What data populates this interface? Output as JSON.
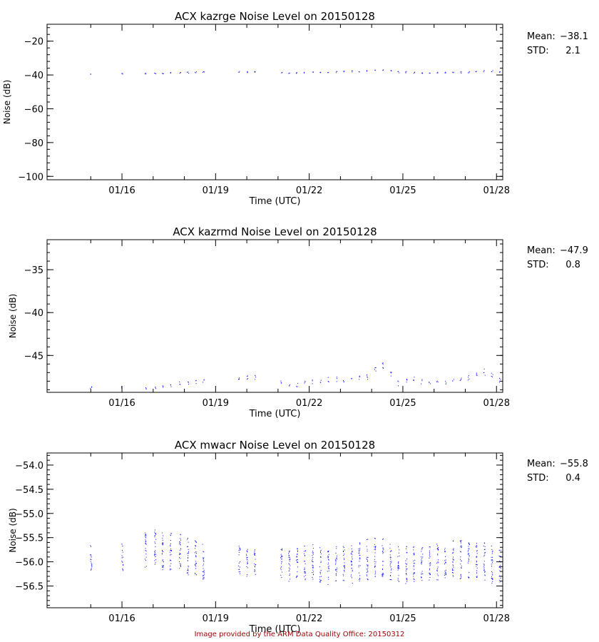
{
  "chart_data": [
    {
      "type": "scatter",
      "title": "ACX kazrge Noise Level on 20150128",
      "xlabel": "Time (UTC)",
      "ylabel": "Noise (dB)",
      "xlim": [
        -1.4,
        13.2
      ],
      "ylim": [
        -102,
        -10
      ],
      "x_ticks": [
        {
          "x": 1,
          "label": "01/16"
        },
        {
          "x": 4,
          "label": "01/19"
        },
        {
          "x": 7,
          "label": "01/22"
        },
        {
          "x": 10,
          "label": "01/25"
        },
        {
          "x": 13,
          "label": "01/28"
        }
      ],
      "y_ticks": [
        {
          "y": -20,
          "label": "−20"
        },
        {
          "y": -40,
          "label": "−40"
        },
        {
          "y": -60,
          "label": "−60"
        },
        {
          "y": -80,
          "label": "−80"
        },
        {
          "y": -100,
          "label": "−100"
        }
      ],
      "series": [
        {
          "color": "#0000ff",
          "points": [
            {
              "x": 0.0,
              "y": -38.8,
              "spread": 0.2
            },
            {
              "x": 1.0,
              "y": -38.8,
              "spread": 0.2
            },
            {
              "x": 1.75,
              "y": -38.7,
              "spread": 0.3
            },
            {
              "x": 2.05,
              "y": -38.6,
              "spread": 0.3
            },
            {
              "x": 2.3,
              "y": -38.5,
              "spread": 0.3
            },
            {
              "x": 2.55,
              "y": -38.4,
              "spread": 0.3
            },
            {
              "x": 2.85,
              "y": -38.3,
              "spread": 0.3
            },
            {
              "x": 3.1,
              "y": -38.1,
              "spread": 0.4
            },
            {
              "x": 3.35,
              "y": -38.0,
              "spread": 0.4
            },
            {
              "x": 3.6,
              "y": -38.0,
              "spread": 0.4
            },
            {
              "x": 4.75,
              "y": -37.9,
              "spread": 0.4
            },
            {
              "x": 5.0,
              "y": -38.0,
              "spread": 0.4
            },
            {
              "x": 5.25,
              "y": -37.9,
              "spread": 0.4
            },
            {
              "x": 6.1,
              "y": -38.2,
              "spread": 0.4
            },
            {
              "x": 6.35,
              "y": -38.3,
              "spread": 0.4
            },
            {
              "x": 6.6,
              "y": -38.4,
              "spread": 0.4
            },
            {
              "x": 6.85,
              "y": -38.2,
              "spread": 0.4
            },
            {
              "x": 7.1,
              "y": -38.0,
              "spread": 0.4
            },
            {
              "x": 7.35,
              "y": -38.0,
              "spread": 0.4
            },
            {
              "x": 7.6,
              "y": -37.9,
              "spread": 0.4
            },
            {
              "x": 7.85,
              "y": -37.8,
              "spread": 0.4
            },
            {
              "x": 8.1,
              "y": -37.7,
              "spread": 0.4
            },
            {
              "x": 8.35,
              "y": -37.5,
              "spread": 0.5
            },
            {
              "x": 8.6,
              "y": -37.5,
              "spread": 0.5
            },
            {
              "x": 8.85,
              "y": -37.2,
              "spread": 0.6
            },
            {
              "x": 9.1,
              "y": -36.8,
              "spread": 0.8
            },
            {
              "x": 9.35,
              "y": -36.8,
              "spread": 0.8
            },
            {
              "x": 9.6,
              "y": -37.0,
              "spread": 0.8
            },
            {
              "x": 9.85,
              "y": -38.0,
              "spread": 0.6
            },
            {
              "x": 10.1,
              "y": -38.0,
              "spread": 0.5
            },
            {
              "x": 10.35,
              "y": -38.2,
              "spread": 0.5
            },
            {
              "x": 10.6,
              "y": -38.3,
              "spread": 0.5
            },
            {
              "x": 10.85,
              "y": -38.3,
              "spread": 0.4
            },
            {
              "x": 11.1,
              "y": -38.2,
              "spread": 0.4
            },
            {
              "x": 11.35,
              "y": -38.2,
              "spread": 0.4
            },
            {
              "x": 11.6,
              "y": -38.1,
              "spread": 0.4
            },
            {
              "x": 11.85,
              "y": -38.1,
              "spread": 0.4
            },
            {
              "x": 12.1,
              "y": -37.9,
              "spread": 0.4
            },
            {
              "x": 12.35,
              "y": -37.7,
              "spread": 0.4
            },
            {
              "x": 12.6,
              "y": -37.4,
              "spread": 0.5
            },
            {
              "x": 12.85,
              "y": -37.3,
              "spread": 0.5
            },
            {
              "x": 13.1,
              "y": -37.8,
              "spread": 0.8
            }
          ]
        }
      ],
      "stats": {
        "mean_label": "Mean:",
        "mean": "−38.1",
        "std_label": "STD:",
        "std": "2.1"
      }
    },
    {
      "type": "scatter",
      "title": "ACX kazrmd Noise Level on 20150128",
      "xlabel": "Time (UTC)",
      "ylabel": "Noise (dB)",
      "xlim": [
        -1.4,
        13.2
      ],
      "ylim": [
        -49.3,
        -31.5
      ],
      "x_ticks": [
        {
          "x": 1,
          "label": "01/16"
        },
        {
          "x": 4,
          "label": "01/19"
        },
        {
          "x": 7,
          "label": "01/22"
        },
        {
          "x": 10,
          "label": "01/25"
        },
        {
          "x": 13,
          "label": "01/28"
        }
      ],
      "y_ticks": [
        {
          "y": -35,
          "label": "−35"
        },
        {
          "y": -40,
          "label": "−40"
        },
        {
          "y": -45,
          "label": "−45"
        }
      ],
      "series": [
        {
          "color": "#0000ff",
          "points": [
            {
              "x": 0.0,
              "y": -48.7,
              "spread": 0.3
            },
            {
              "x": 1.0,
              "y": -48.7,
              "spread": 0.3
            },
            {
              "x": 1.75,
              "y": -48.7,
              "spread": 0.4
            },
            {
              "x": 2.05,
              "y": -48.7,
              "spread": 0.4
            },
            {
              "x": 2.3,
              "y": -48.6,
              "spread": 0.4
            },
            {
              "x": 2.55,
              "y": -48.4,
              "spread": 0.5
            },
            {
              "x": 2.85,
              "y": -48.2,
              "spread": 0.5
            },
            {
              "x": 3.1,
              "y": -48.1,
              "spread": 0.5
            },
            {
              "x": 3.35,
              "y": -48.1,
              "spread": 0.5
            },
            {
              "x": 3.6,
              "y": -48.0,
              "spread": 0.5
            },
            {
              "x": 4.75,
              "y": -47.7,
              "spread": 0.7
            },
            {
              "x": 5.0,
              "y": -47.5,
              "spread": 0.7
            },
            {
              "x": 5.25,
              "y": -47.5,
              "spread": 0.7
            },
            {
              "x": 6.1,
              "y": -48.0,
              "spread": 0.6
            },
            {
              "x": 6.35,
              "y": -48.4,
              "spread": 0.5
            },
            {
              "x": 6.6,
              "y": -48.4,
              "spread": 0.5
            },
            {
              "x": 6.85,
              "y": -48.1,
              "spread": 0.6
            },
            {
              "x": 7.1,
              "y": -48.0,
              "spread": 0.6
            },
            {
              "x": 7.35,
              "y": -47.9,
              "spread": 0.6
            },
            {
              "x": 7.6,
              "y": -47.8,
              "spread": 0.6
            },
            {
              "x": 7.85,
              "y": -47.7,
              "spread": 0.6
            },
            {
              "x": 8.1,
              "y": -47.8,
              "spread": 0.6
            },
            {
              "x": 8.35,
              "y": -47.9,
              "spread": 0.6
            },
            {
              "x": 8.6,
              "y": -47.6,
              "spread": 0.7
            },
            {
              "x": 8.85,
              "y": -47.3,
              "spread": 0.9
            },
            {
              "x": 9.1,
              "y": -46.4,
              "spread": 1.0
            },
            {
              "x": 9.35,
              "y": -46.3,
              "spread": 1.0
            },
            {
              "x": 9.6,
              "y": -46.9,
              "spread": 1.0
            },
            {
              "x": 9.85,
              "y": -48.2,
              "spread": 0.6
            },
            {
              "x": 10.1,
              "y": -47.9,
              "spread": 0.7
            },
            {
              "x": 10.35,
              "y": -47.8,
              "spread": 0.7
            },
            {
              "x": 10.6,
              "y": -48.0,
              "spread": 0.6
            },
            {
              "x": 10.85,
              "y": -48.1,
              "spread": 0.6
            },
            {
              "x": 11.1,
              "y": -48.1,
              "spread": 0.6
            },
            {
              "x": 11.35,
              "y": -48.0,
              "spread": 0.6
            },
            {
              "x": 11.6,
              "y": -47.8,
              "spread": 0.6
            },
            {
              "x": 11.85,
              "y": -47.6,
              "spread": 0.7
            },
            {
              "x": 12.1,
              "y": -47.5,
              "spread": 0.7
            },
            {
              "x": 12.35,
              "y": -47.0,
              "spread": 0.8
            },
            {
              "x": 12.6,
              "y": -46.9,
              "spread": 0.8
            },
            {
              "x": 12.85,
              "y": -47.2,
              "spread": 0.8
            },
            {
              "x": 13.1,
              "y": -47.8,
              "spread": 0.7
            }
          ]
        }
      ],
      "stats": {
        "mean_label": "Mean:",
        "mean": "−47.9",
        "std_label": "STD:",
        "std": "0.8"
      }
    },
    {
      "type": "scatter",
      "title": "ACX mwacr Noise Level on 20150128",
      "xlabel": "Time (UTC)",
      "ylabel": "Noise (dB)",
      "xlim": [
        -1.4,
        13.2
      ],
      "ylim": [
        -56.95,
        -53.75
      ],
      "x_ticks": [
        {
          "x": 1,
          "label": "01/16"
        },
        {
          "x": 4,
          "label": "01/19"
        },
        {
          "x": 7,
          "label": "01/22"
        },
        {
          "x": 10,
          "label": "01/25"
        },
        {
          "x": 13,
          "label": "01/28"
        }
      ],
      "y_ticks": [
        {
          "y": -54.0,
          "label": "−54.0"
        },
        {
          "y": -54.5,
          "label": "−54.5"
        },
        {
          "y": -55.0,
          "label": "−55.0"
        },
        {
          "y": -55.5,
          "label": "−55.5"
        },
        {
          "y": -56.0,
          "label": "−56.0"
        },
        {
          "y": -56.5,
          "label": "−56.5"
        }
      ],
      "series": [
        {
          "color": "#0000ff",
          "points": [
            {
              "x": 0.0,
              "y": -55.9,
              "spread": 0.55
            },
            {
              "x": 1.0,
              "y": -55.9,
              "spread": 0.55
            },
            {
              "x": 1.75,
              "y": -55.75,
              "spread": 0.75
            },
            {
              "x": 2.05,
              "y": -55.7,
              "spread": 0.8
            },
            {
              "x": 2.3,
              "y": -55.75,
              "spread": 0.85
            },
            {
              "x": 2.55,
              "y": -55.8,
              "spread": 0.8
            },
            {
              "x": 2.85,
              "y": -55.85,
              "spread": 0.85
            },
            {
              "x": 3.1,
              "y": -55.9,
              "spread": 0.8
            },
            {
              "x": 3.35,
              "y": -55.95,
              "spread": 0.8
            },
            {
              "x": 3.6,
              "y": -56.0,
              "spread": 0.8
            },
            {
              "x": 4.75,
              "y": -55.95,
              "spread": 0.6
            },
            {
              "x": 5.0,
              "y": -56.0,
              "spread": 0.6
            },
            {
              "x": 5.25,
              "y": -56.0,
              "spread": 0.6
            },
            {
              "x": 6.1,
              "y": -56.0,
              "spread": 0.7
            },
            {
              "x": 6.35,
              "y": -56.05,
              "spread": 0.75
            },
            {
              "x": 6.6,
              "y": -56.0,
              "spread": 0.7
            },
            {
              "x": 6.85,
              "y": -56.0,
              "spread": 0.75
            },
            {
              "x": 7.1,
              "y": -56.0,
              "spread": 0.8
            },
            {
              "x": 7.35,
              "y": -56.05,
              "spread": 0.75
            },
            {
              "x": 7.6,
              "y": -56.1,
              "spread": 0.75
            },
            {
              "x": 7.85,
              "y": -56.05,
              "spread": 0.75
            },
            {
              "x": 8.1,
              "y": -56.05,
              "spread": 0.75
            },
            {
              "x": 8.35,
              "y": -56.05,
              "spread": 0.8
            },
            {
              "x": 8.6,
              "y": -56.0,
              "spread": 0.8
            },
            {
              "x": 8.85,
              "y": -55.95,
              "spread": 0.85
            },
            {
              "x": 9.1,
              "y": -55.9,
              "spread": 0.8
            },
            {
              "x": 9.35,
              "y": -55.9,
              "spread": 0.8
            },
            {
              "x": 9.6,
              "y": -56.0,
              "spread": 0.8
            },
            {
              "x": 9.85,
              "y": -56.05,
              "spread": 0.75
            },
            {
              "x": 10.1,
              "y": -56.05,
              "spread": 0.8
            },
            {
              "x": 10.35,
              "y": -56.05,
              "spread": 0.75
            },
            {
              "x": 10.6,
              "y": -56.05,
              "spread": 0.75
            },
            {
              "x": 10.85,
              "y": -56.05,
              "spread": 0.75
            },
            {
              "x": 11.1,
              "y": -56.0,
              "spread": 0.75
            },
            {
              "x": 11.35,
              "y": -55.95,
              "spread": 0.75
            },
            {
              "x": 11.6,
              "y": -55.95,
              "spread": 0.8
            },
            {
              "x": 11.85,
              "y": -55.95,
              "spread": 0.8
            },
            {
              "x": 12.1,
              "y": -55.95,
              "spread": 0.8
            },
            {
              "x": 12.35,
              "y": -55.95,
              "spread": 0.8
            },
            {
              "x": 12.6,
              "y": -56.0,
              "spread": 0.8
            },
            {
              "x": 12.85,
              "y": -56.05,
              "spread": 0.85
            },
            {
              "x": 13.1,
              "y": -56.1,
              "spread": 0.7
            }
          ]
        }
      ],
      "stats": {
        "mean_label": "Mean:",
        "mean": "−55.8",
        "std_label": "STD:",
        "std": "0.4"
      }
    }
  ],
  "footer": "Image provided by the ARM Data Quality Office: 20150312"
}
